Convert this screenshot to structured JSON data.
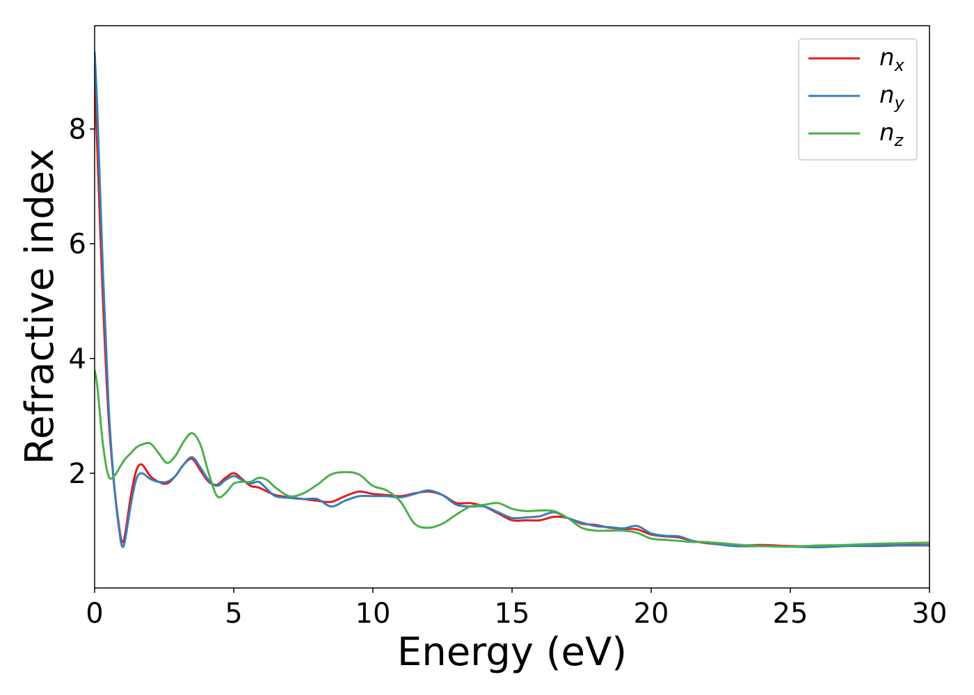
{
  "chart_data": {
    "type": "line",
    "xlabel": "Energy (eV)",
    "ylabel": "Refractive index",
    "xlim": [
      0,
      30
    ],
    "ylim": [
      0,
      9.8
    ],
    "xticks": [
      0,
      5,
      10,
      15,
      20,
      25,
      30
    ],
    "yticks": [
      2,
      4,
      6,
      8
    ],
    "grid": false,
    "legend": {
      "placement": "top-right",
      "style": "italic symbol with subscript"
    },
    "series": [
      {
        "name": "n_x",
        "name_base": "n",
        "name_sub": "x",
        "color": "#e41a1c",
        "x": [
          0,
          0.1,
          0.3,
          0.5,
          0.7,
          0.9,
          1.0,
          1.1,
          1.3,
          1.5,
          1.7,
          2.0,
          2.3,
          2.6,
          2.9,
          3.2,
          3.5,
          3.8,
          4.1,
          4.4,
          4.7,
          5.0,
          5.3,
          5.6,
          5.9,
          6.2,
          6.5,
          7.0,
          7.5,
          8.0,
          8.5,
          9.0,
          9.5,
          10.0,
          10.5,
          11.0,
          11.5,
          12.0,
          12.5,
          13.0,
          13.5,
          14.0,
          14.5,
          15.0,
          15.5,
          16.0,
          16.5,
          17.0,
          17.5,
          18.0,
          18.5,
          19.0,
          19.5,
          20.0,
          20.5,
          21.0,
          21.5,
          22.0,
          23.0,
          24.0,
          25.0,
          26.0,
          27.0,
          28.0,
          29.0,
          30.0
        ],
        "values": [
          8.85,
          7.6,
          5.0,
          3.0,
          1.8,
          1.0,
          0.8,
          0.95,
          1.6,
          2.05,
          2.15,
          1.95,
          1.85,
          1.82,
          1.95,
          2.15,
          2.25,
          2.05,
          1.85,
          1.8,
          1.92,
          2.0,
          1.9,
          1.78,
          1.75,
          1.68,
          1.62,
          1.58,
          1.55,
          1.52,
          1.5,
          1.6,
          1.68,
          1.64,
          1.62,
          1.6,
          1.65,
          1.68,
          1.62,
          1.48,
          1.48,
          1.42,
          1.3,
          1.18,
          1.18,
          1.18,
          1.24,
          1.22,
          1.12,
          1.1,
          1.05,
          1.03,
          1.02,
          0.93,
          0.9,
          0.88,
          0.82,
          0.78,
          0.74,
          0.75,
          0.73,
          0.73,
          0.74,
          0.74,
          0.75,
          0.75
        ]
      },
      {
        "name": "n_y",
        "name_base": "n",
        "name_sub": "y",
        "color": "#377eb8",
        "x": [
          0,
          0.1,
          0.3,
          0.5,
          0.7,
          0.9,
          1.0,
          1.1,
          1.3,
          1.5,
          1.7,
          2.0,
          2.3,
          2.6,
          2.9,
          3.2,
          3.5,
          3.8,
          4.1,
          4.4,
          4.7,
          5.0,
          5.3,
          5.6,
          5.9,
          6.2,
          6.5,
          7.0,
          7.5,
          8.0,
          8.5,
          9.0,
          9.5,
          10.0,
          10.5,
          11.0,
          11.5,
          12.0,
          12.5,
          13.0,
          13.5,
          14.0,
          14.5,
          15.0,
          15.5,
          16.0,
          16.5,
          17.0,
          17.5,
          18.0,
          18.5,
          19.0,
          19.5,
          20.0,
          20.5,
          21.0,
          21.5,
          22.0,
          23.0,
          24.0,
          25.0,
          26.0,
          27.0,
          28.0,
          29.0,
          30.0
        ],
        "values": [
          9.35,
          8.3,
          5.5,
          3.2,
          1.8,
          0.95,
          0.72,
          0.85,
          1.45,
          1.9,
          2.0,
          1.9,
          1.85,
          1.85,
          1.95,
          2.15,
          2.28,
          2.1,
          1.88,
          1.78,
          1.88,
          1.95,
          1.88,
          1.82,
          1.85,
          1.72,
          1.6,
          1.57,
          1.55,
          1.55,
          1.42,
          1.52,
          1.6,
          1.6,
          1.6,
          1.58,
          1.64,
          1.7,
          1.62,
          1.45,
          1.42,
          1.42,
          1.32,
          1.22,
          1.23,
          1.25,
          1.32,
          1.22,
          1.14,
          1.08,
          1.06,
          1.04,
          1.08,
          0.95,
          0.91,
          0.9,
          0.82,
          0.79,
          0.73,
          0.73,
          0.72,
          0.71,
          0.73,
          0.73,
          0.74,
          0.74
        ]
      },
      {
        "name": "n_z",
        "name_base": "n",
        "name_sub": "z",
        "color": "#4daf4a",
        "x": [
          0,
          0.1,
          0.3,
          0.5,
          0.7,
          0.9,
          1.0,
          1.1,
          1.3,
          1.5,
          1.7,
          2.0,
          2.3,
          2.6,
          2.9,
          3.2,
          3.5,
          3.8,
          4.1,
          4.4,
          4.7,
          5.0,
          5.3,
          5.6,
          5.9,
          6.2,
          6.5,
          7.0,
          7.5,
          8.0,
          8.5,
          9.0,
          9.5,
          10.0,
          10.5,
          11.0,
          11.5,
          12.0,
          12.5,
          13.0,
          13.5,
          14.0,
          14.5,
          15.0,
          15.5,
          16.0,
          16.5,
          17.0,
          17.5,
          18.0,
          18.5,
          19.0,
          19.5,
          20.0,
          20.5,
          21.0,
          21.5,
          22.0,
          23.0,
          24.0,
          25.0,
          26.0,
          27.0,
          28.0,
          29.0,
          30.0
        ],
        "values": [
          3.8,
          3.5,
          2.5,
          1.95,
          1.95,
          2.1,
          2.18,
          2.25,
          2.35,
          2.45,
          2.5,
          2.52,
          2.35,
          2.18,
          2.3,
          2.55,
          2.7,
          2.5,
          2.0,
          1.6,
          1.65,
          1.82,
          1.85,
          1.85,
          1.92,
          1.88,
          1.75,
          1.6,
          1.65,
          1.8,
          1.98,
          2.02,
          1.98,
          1.78,
          1.7,
          1.5,
          1.12,
          1.05,
          1.12,
          1.28,
          1.42,
          1.45,
          1.48,
          1.38,
          1.34,
          1.35,
          1.34,
          1.22,
          1.05,
          1.0,
          1.0,
          1.0,
          0.96,
          0.86,
          0.84,
          0.82,
          0.8,
          0.8,
          0.76,
          0.73,
          0.72,
          0.74,
          0.75,
          0.77,
          0.78,
          0.79
        ]
      }
    ]
  }
}
